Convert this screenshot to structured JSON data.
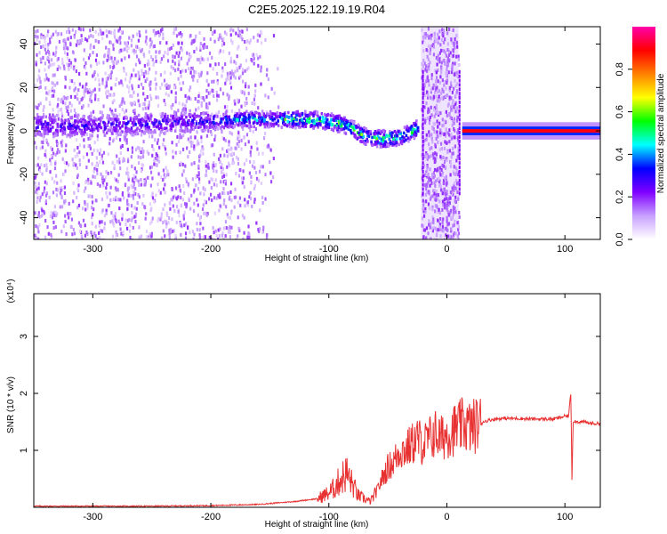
{
  "title": "C2E5.2025.122.19.19.R04",
  "chart_data": [
    {
      "type": "heatmap",
      "xlabel": "Height of straight line (km)",
      "ylabel": "Frequency (Hz)",
      "xlim": [
        -350,
        130
      ],
      "ylim": [
        -50,
        48
      ],
      "xticks": [
        -300,
        -200,
        -100,
        0,
        100
      ],
      "yticks": [
        -40,
        -20,
        0,
        20,
        40
      ],
      "colorbar": {
        "label": "Normalized spectral amplitude",
        "range": [
          0,
          1
        ],
        "ticks": [
          0.0,
          0.2,
          0.4,
          0.6,
          0.8
        ],
        "tick_labels": [
          "0.0",
          "0.2",
          "0.4",
          "0.6",
          "0.8"
        ],
        "colormap": "rainbow",
        "stops": [
          "#ffffff",
          "#c8a0ff",
          "#7f00ff",
          "#0000ff",
          "#00ffff",
          "#00ff00",
          "#ffff00",
          "#ff8000",
          "#ff0000",
          "#ff00aa"
        ]
      },
      "ridge": {
        "x": [
          -350,
          -300,
          -260,
          -220,
          -200,
          -180,
          -160,
          -140,
          -120,
          -100,
          -85,
          -70,
          -55,
          -40,
          -25
        ],
        "y": [
          3,
          3,
          4,
          5,
          5,
          6,
          6,
          6,
          6,
          5,
          3,
          -2,
          -3,
          -2,
          2
        ]
      },
      "tone": {
        "x_start": 13,
        "x_end": 130,
        "y": 0
      },
      "noise_band": {
        "x_start": -22,
        "x_end": 10
      },
      "grid": false
    },
    {
      "type": "line",
      "xlabel": "Height of straight line (km)",
      "ylabel": "SNR (10 * v/v)",
      "y_multiplier": "(x10⁴)",
      "xlim": [
        -350,
        130
      ],
      "ylim": [
        0,
        3.75
      ],
      "xticks": [
        -300,
        -200,
        -100,
        0,
        100
      ],
      "yticks": [
        1,
        2,
        3
      ],
      "color": "#e83030",
      "series": [
        {
          "x": [
            -350,
            -250,
            -200,
            -160,
            -130,
            -110,
            -100,
            -95,
            -90,
            -85,
            -80,
            -75,
            -70,
            -65,
            -60,
            -55,
            -50,
            -45,
            -40,
            -35,
            -30,
            -25,
            -20,
            -15,
            -10,
            -5,
            0,
            5,
            10,
            15,
            20,
            30,
            40,
            50,
            60,
            70,
            80,
            90,
            95,
            100,
            103,
            105,
            106,
            107,
            108,
            110,
            115,
            120,
            125,
            130
          ],
          "y": [
            0.02,
            0.02,
            0.03,
            0.05,
            0.1,
            0.15,
            0.25,
            0.35,
            0.5,
            0.6,
            0.4,
            0.2,
            0.15,
            0.1,
            0.25,
            0.5,
            0.7,
            0.8,
            1.0,
            1.0,
            1.1,
            1.2,
            1.1,
            1.2,
            1.3,
            1.2,
            1.3,
            1.35,
            1.4,
            1.45,
            1.4,
            1.5,
            1.55,
            1.56,
            1.56,
            1.55,
            1.55,
            1.55,
            1.57,
            1.6,
            1.6,
            2.0,
            0.5,
            1.5,
            1.52,
            1.5,
            1.5,
            1.48,
            1.47,
            1.47
          ]
        }
      ]
    }
  ]
}
